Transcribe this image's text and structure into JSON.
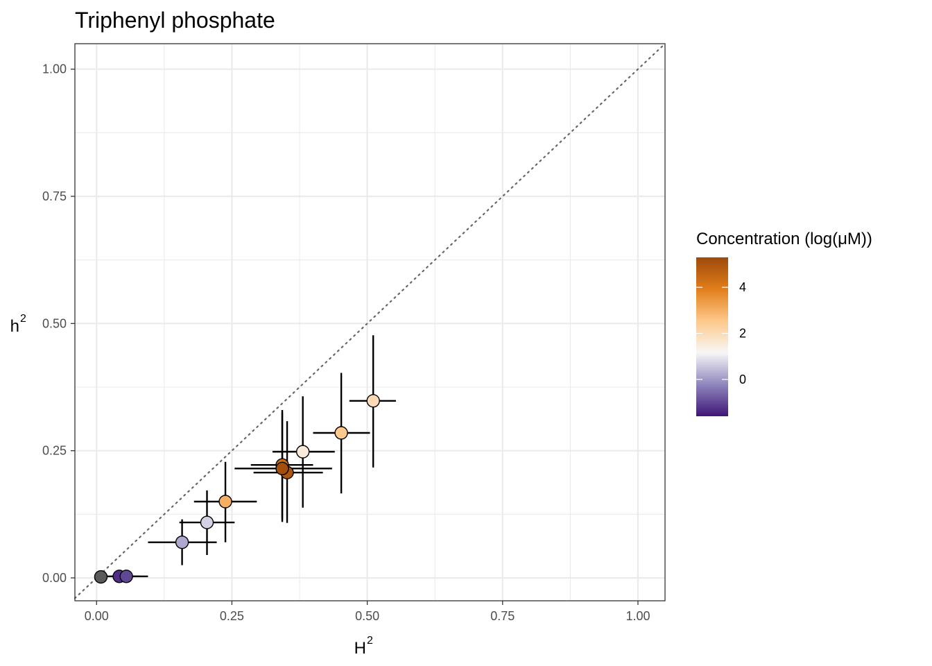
{
  "chart_data": {
    "type": "scatter",
    "title": "Triphenyl phosphate",
    "xlabel": "H",
    "xlabel_superscript": "2",
    "ylabel": "h",
    "ylabel_superscript": "2",
    "xlim": [
      -0.04,
      1.05
    ],
    "ylim": [
      -0.045,
      1.05
    ],
    "x_ticks": [
      0.0,
      0.25,
      0.5,
      0.75,
      1.0
    ],
    "y_ticks": [
      0.0,
      0.25,
      0.5,
      0.75,
      1.0
    ],
    "x_tick_labels": [
      "0.00",
      "0.25",
      "0.50",
      "0.75",
      "1.00"
    ],
    "y_tick_labels": [
      "0.00",
      "0.25",
      "0.50",
      "0.75",
      "1.00"
    ],
    "grid": true,
    "reference_line": {
      "type": "identity",
      "style": "dotted",
      "color": "#666666"
    },
    "legend": {
      "title": "Concentration (log(μM))",
      "placement": "right",
      "range": [
        -1.6,
        5.3
      ],
      "ticks": [
        0,
        2,
        4
      ],
      "tick_labels": [
        "0",
        "2",
        "4"
      ],
      "colors": [
        "#3f1677",
        "#8f86bd",
        "#f7f7f7",
        "#fdc88a",
        "#e17e1b",
        "#9e4a0a"
      ]
    },
    "points": [
      {
        "x": 0.008,
        "y": 0.002,
        "xmin": 0.008,
        "xmax": 0.008,
        "ymin": 0.002,
        "ymax": 0.002,
        "concentration": null
      },
      {
        "x": 0.042,
        "y": 0.003,
        "xmin": 0.015,
        "xmax": 0.08,
        "ymin": 0.003,
        "ymax": 0.003,
        "concentration": -1.3
      },
      {
        "x": 0.055,
        "y": 0.003,
        "xmin": 0.025,
        "xmax": 0.095,
        "ymin": 0.003,
        "ymax": 0.003,
        "concentration": -1.0
      },
      {
        "x": 0.158,
        "y": 0.07,
        "xmin": 0.095,
        "xmax": 0.222,
        "ymin": 0.025,
        "ymax": 0.115,
        "concentration": 0.2
      },
      {
        "x": 0.204,
        "y": 0.109,
        "xmin": 0.153,
        "xmax": 0.255,
        "ymin": 0.045,
        "ymax": 0.172,
        "concentration": 0.7
      },
      {
        "x": 0.238,
        "y": 0.15,
        "xmin": 0.18,
        "xmax": 0.296,
        "ymin": 0.07,
        "ymax": 0.228,
        "concentration": 3.0
      },
      {
        "x": 0.343,
        "y": 0.222,
        "xmin": 0.285,
        "xmax": 0.4,
        "ymin": 0.115,
        "ymax": 0.33,
        "concentration": 4.4
      },
      {
        "x": 0.352,
        "y": 0.207,
        "xmin": 0.29,
        "xmax": 0.418,
        "ymin": 0.108,
        "ymax": 0.308,
        "concentration": 5.0
      },
      {
        "x": 0.343,
        "y": 0.215,
        "xmin": 0.255,
        "xmax": 0.435,
        "ymin": 0.11,
        "ymax": 0.325,
        "concentration": 5.2
      },
      {
        "x": 0.381,
        "y": 0.248,
        "xmin": 0.325,
        "xmax": 0.44,
        "ymin": 0.138,
        "ymax": 0.357,
        "concentration": 1.5
      },
      {
        "x": 0.452,
        "y": 0.285,
        "xmin": 0.4,
        "xmax": 0.505,
        "ymin": 0.166,
        "ymax": 0.403,
        "concentration": 2.5
      },
      {
        "x": 0.511,
        "y": 0.348,
        "xmin": 0.467,
        "xmax": 0.553,
        "ymin": 0.217,
        "ymax": 0.477,
        "concentration": 2.0
      }
    ]
  }
}
